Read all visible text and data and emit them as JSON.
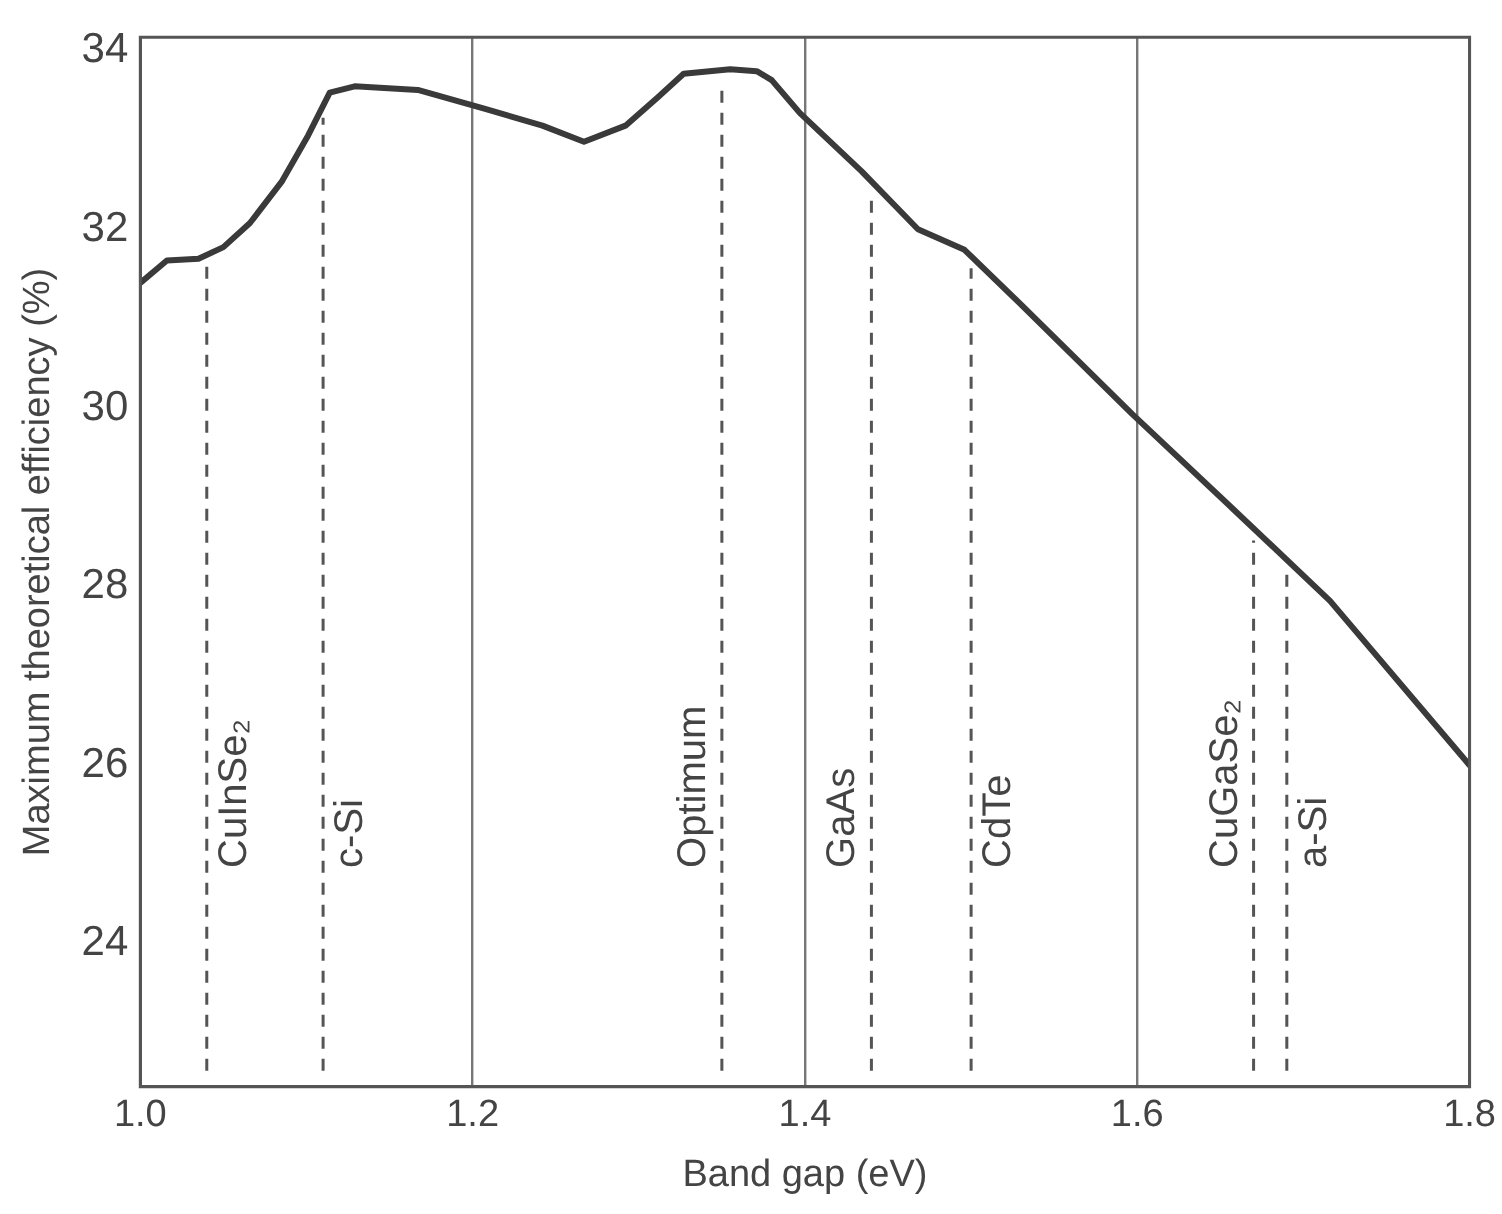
{
  "chart_data": {
    "type": "line",
    "xlabel": "Band gap (eV)",
    "ylabel": "Maximum theoretical efficiency (%)",
    "x": [
      1.0,
      1.016,
      1.035,
      1.05,
      1.066,
      1.085,
      1.101,
      1.114,
      1.129,
      1.167,
      1.207,
      1.242,
      1.267,
      1.292,
      1.311,
      1.327,
      1.355,
      1.371,
      1.38,
      1.397,
      1.434,
      1.468,
      1.496,
      1.531,
      1.597,
      1.657,
      1.716,
      1.8
    ],
    "series": [
      {
        "color": "#3a3a3a",
        "values": [
          31.4,
          31.65,
          31.67,
          31.8,
          32.07,
          32.53,
          33.05,
          33.53,
          33.6,
          33.56,
          33.35,
          33.16,
          32.98,
          33.16,
          33.47,
          33.74,
          33.79,
          33.77,
          33.67,
          33.3,
          32.65,
          32.0,
          31.77,
          31.14,
          29.93,
          28.88,
          27.84,
          26.0
        ]
      }
    ],
    "xlim": [
      1.0,
      1.8
    ],
    "xticks": [
      {
        "value": 1.0,
        "label": "1.0"
      },
      1.2,
      1.4,
      1.6,
      1.8
    ],
    "ylim": [
      22.4,
      34.15
    ],
    "yticks": [
      24,
      26,
      28,
      30,
      32,
      34
    ],
    "grid": "x",
    "legend": false,
    "marker": "none",
    "line_style": "solid",
    "ref_lines": [
      {
        "axis": "x",
        "value": 1.04,
        "label": "CuInSe₂",
        "line_style": "dashed"
      },
      {
        "axis": "x",
        "value": 1.11,
        "label": "c-Si",
        "line_style": "dashed"
      },
      {
        "axis": "x",
        "value": 1.35,
        "label": "Optimum",
        "line_style": "dashed"
      },
      {
        "axis": "x",
        "value": 1.44,
        "label": "GaAs",
        "line_style": "dashed"
      },
      {
        "axis": "x",
        "value": 1.5,
        "label": "CdTe",
        "line_style": "dashed"
      },
      {
        "axis": "x",
        "value": 1.67,
        "label": "CuGaSe₂",
        "line_style": "dashed"
      },
      {
        "axis": "x",
        "value": 1.69,
        "label": "a-Si",
        "line_style": "dashed"
      }
    ]
  }
}
